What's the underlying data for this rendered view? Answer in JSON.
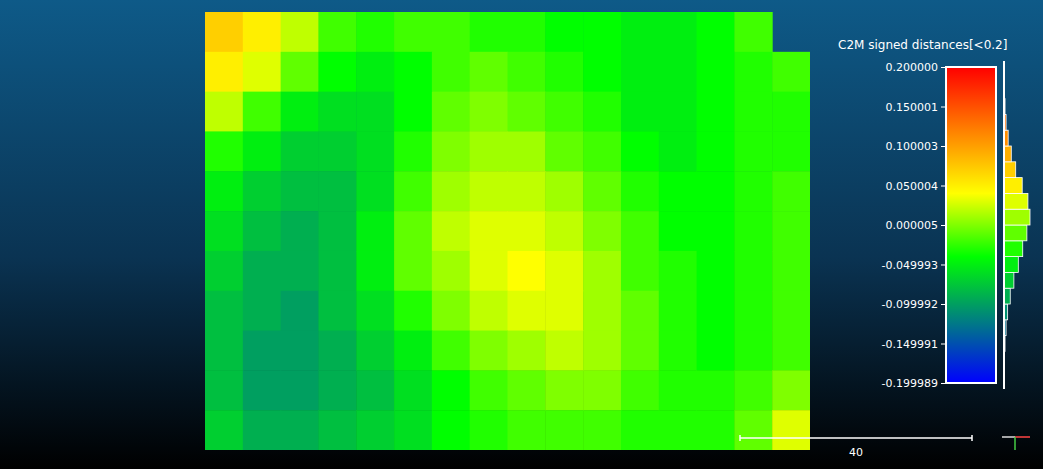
{
  "chart_data": {
    "type": "heatmap",
    "title": "C2M signed distances[<0.2]",
    "cells": [
      [
        0.07,
        0.05,
        0.02,
        -0.02,
        -0.03,
        -0.02,
        -0.02,
        -0.03,
        -0.03,
        -0.04,
        -0.04,
        -0.05,
        -0.05,
        -0.04,
        -0.02,
        null
      ],
      [
        0.05,
        0.03,
        -0.01,
        -0.04,
        -0.05,
        -0.04,
        -0.02,
        -0.01,
        -0.02,
        -0.03,
        -0.04,
        -0.05,
        -0.05,
        -0.04,
        -0.03,
        -0.02
      ],
      [
        0.02,
        -0.02,
        -0.05,
        -0.06,
        -0.06,
        -0.04,
        -0.01,
        0.0,
        -0.01,
        -0.02,
        -0.03,
        -0.05,
        -0.05,
        -0.04,
        -0.03,
        -0.03
      ],
      [
        -0.03,
        -0.05,
        -0.07,
        -0.07,
        -0.06,
        -0.03,
        0.0,
        0.01,
        0.01,
        -0.01,
        -0.02,
        -0.04,
        -0.05,
        -0.04,
        -0.03,
        -0.03
      ],
      [
        -0.05,
        -0.07,
        -0.08,
        -0.08,
        -0.06,
        -0.02,
        0.01,
        0.02,
        0.02,
        0.01,
        -0.01,
        -0.03,
        -0.04,
        -0.04,
        -0.03,
        -0.02
      ],
      [
        -0.06,
        -0.08,
        -0.09,
        -0.08,
        -0.05,
        -0.01,
        0.02,
        0.03,
        0.03,
        0.02,
        0.0,
        -0.02,
        -0.04,
        -0.04,
        -0.03,
        -0.02
      ],
      [
        -0.07,
        -0.09,
        -0.09,
        -0.08,
        -0.05,
        -0.01,
        0.01,
        0.03,
        0.04,
        0.03,
        0.01,
        -0.02,
        -0.03,
        -0.04,
        -0.03,
        -0.02
      ],
      [
        -0.08,
        -0.09,
        -0.1,
        -0.08,
        -0.06,
        -0.03,
        0.0,
        0.02,
        0.03,
        0.03,
        0.01,
        -0.01,
        -0.03,
        -0.04,
        -0.03,
        -0.02
      ],
      [
        -0.08,
        -0.1,
        -0.1,
        -0.09,
        -0.07,
        -0.05,
        -0.02,
        0.0,
        0.01,
        0.02,
        0.01,
        -0.01,
        -0.03,
        -0.04,
        -0.03,
        -0.02
      ],
      [
        -0.08,
        -0.1,
        -0.1,
        -0.09,
        -0.08,
        -0.06,
        -0.04,
        -0.02,
        -0.01,
        0.0,
        0.0,
        -0.02,
        -0.03,
        -0.03,
        -0.02,
        0.0
      ],
      [
        -0.07,
        -0.09,
        -0.09,
        -0.08,
        -0.07,
        -0.06,
        -0.04,
        -0.03,
        -0.02,
        -0.02,
        -0.02,
        -0.03,
        -0.03,
        -0.03,
        -0.01,
        0.03
      ]
    ],
    "clim": [
      -0.199989,
      0.2
    ],
    "cticks": [
      {
        "value": 0.2,
        "label": "0.200000"
      },
      0.150001,
      0.100003,
      0.050004,
      5e-06,
      -0.049993,
      -0.099992,
      -0.149991,
      -0.199989
    ],
    "histogram": {
      "bins": [
        -0.199989,
        -0.18,
        -0.16,
        -0.14,
        -0.12,
        -0.1,
        -0.08,
        -0.06,
        -0.04,
        -0.02,
        0,
        0.02,
        0.04,
        0.06,
        0.08,
        0.1,
        0.12,
        0.14,
        0.16,
        0.18,
        0.2
      ],
      "counts": [
        1,
        2,
        4,
        8,
        14,
        24,
        38,
        55,
        72,
        88,
        100,
        92,
        70,
        45,
        28,
        16,
        8,
        4,
        2,
        1
      ]
    },
    "scale_bar": 40,
    "tick_labels": false,
    "grid": false
  }
}
